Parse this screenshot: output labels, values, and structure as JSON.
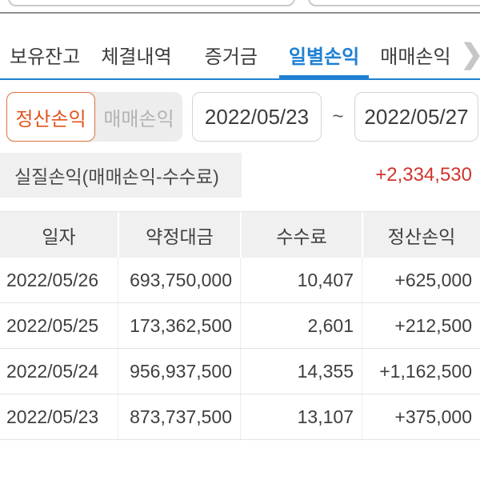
{
  "colors": {
    "accent_blue": "#1e80d2",
    "profit_red": "#d0342c",
    "selected_orange": "#e0551c"
  },
  "tabs": {
    "items": [
      {
        "label": "보유잔고",
        "active": false
      },
      {
        "label": "체결내역",
        "active": false
      },
      {
        "label": "증거금",
        "active": false
      },
      {
        "label": "일별손익",
        "active": true
      },
      {
        "label": "매매손익",
        "active": false
      }
    ],
    "more_icon": "❯"
  },
  "filters": {
    "segmented": {
      "options": [
        {
          "label": "정산손익",
          "selected": true
        },
        {
          "label": "매매손익",
          "selected": false
        }
      ]
    },
    "date_from": "2022/05/23",
    "date_separator": "~",
    "date_to": "2022/05/27"
  },
  "summary": {
    "label": "실질손익(매매손익-수수료)",
    "value": "+2,334,530"
  },
  "table": {
    "headers": [
      "일자",
      "약정대금",
      "수수료",
      "정산손익"
    ],
    "rows": [
      [
        "2022/05/26",
        "693,750,000",
        "10,407",
        "+625,000"
      ],
      [
        "2022/05/25",
        "173,362,500",
        "2,601",
        "+212,500"
      ],
      [
        "2022/05/24",
        "956,937,500",
        "14,355",
        "+1,162,500"
      ],
      [
        "2022/05/23",
        "873,737,500",
        "13,107",
        "+375,000"
      ]
    ]
  }
}
